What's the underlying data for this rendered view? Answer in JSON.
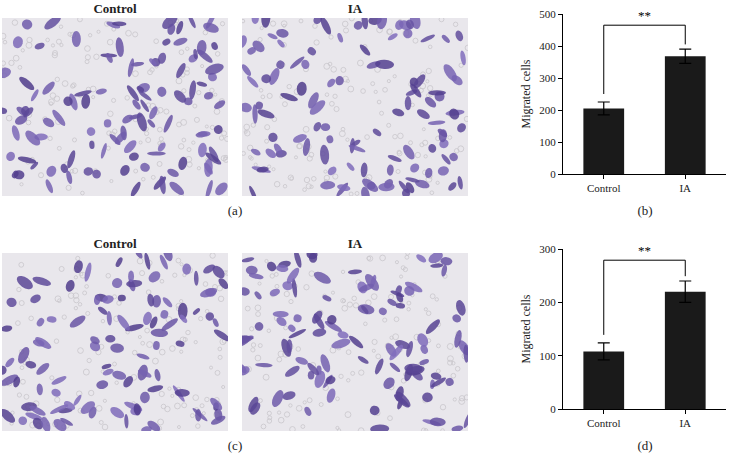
{
  "image_panels": [
    {
      "title": "(a)",
      "images": [
        "Control",
        "IA"
      ]
    },
    {
      "title": "(c)",
      "images": [
        "Control",
        "IA"
      ]
    }
  ],
  "chart_data": [
    {
      "type": "bar",
      "title": "(b)",
      "categories": [
        "Control",
        "IA"
      ],
      "values": [
        205,
        368
      ],
      "errors": [
        20,
        22
      ],
      "color": "#1a1a1a",
      "y_label": "Migrated cells",
      "ylim": [
        0,
        500
      ],
      "yticks": [
        0,
        100,
        200,
        300,
        400,
        500
      ],
      "grid": false,
      "annotations": [
        {
          "text": "**",
          "between": [
            "Control",
            "IA"
          ]
        }
      ]
    },
    {
      "type": "bar",
      "title": "(d)",
      "categories": [
        "Control",
        "IA"
      ],
      "values": [
        108,
        220
      ],
      "errors": [
        16,
        20
      ],
      "color": "#1a1a1a",
      "y_label": "Migrated cells",
      "ylim": [
        0,
        300
      ],
      "yticks": [
        0,
        100,
        200,
        300
      ],
      "grid": false,
      "annotations": [
        {
          "text": "**",
          "between": [
            "Control",
            "IA"
          ]
        }
      ]
    }
  ]
}
